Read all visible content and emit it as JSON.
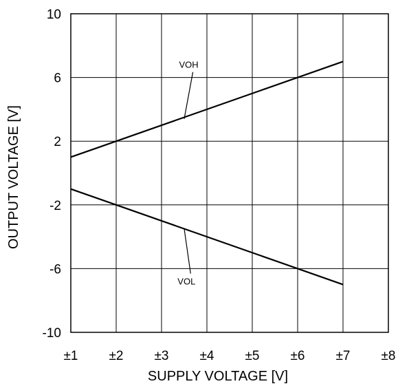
{
  "chart_data": {
    "type": "line",
    "xlabel": "SUPPLY VOLTAGE [V]",
    "ylabel": "OUTPUT VOLTAGE [V]",
    "x": [
      1,
      7
    ],
    "xlim": [
      1,
      8
    ],
    "ylim": [
      -10,
      10
    ],
    "x_tick_values": [
      1,
      2,
      3,
      4,
      5,
      6,
      7,
      8
    ],
    "x_tick_labels": [
      "±1",
      "±2",
      "±3",
      "±4",
      "±5",
      "±6",
      "±7",
      "±8"
    ],
    "y_tick_values": [
      10,
      6,
      2,
      -2,
      -6,
      -10
    ],
    "y_tick_labels": [
      "10",
      "6",
      "2",
      "-2",
      "-6",
      "-10"
    ],
    "grid": true,
    "legend": "none",
    "series": [
      {
        "name": "VOH",
        "values": [
          1,
          7
        ],
        "label_at": [
          3.6,
          6.6
        ],
        "leader_to": [
          3.5,
          3.4
        ]
      },
      {
        "name": "VOL",
        "values": [
          -1,
          -7
        ],
        "label_at": [
          3.55,
          -7.0
        ],
        "leader_to": [
          3.5,
          -3.5
        ]
      }
    ]
  }
}
